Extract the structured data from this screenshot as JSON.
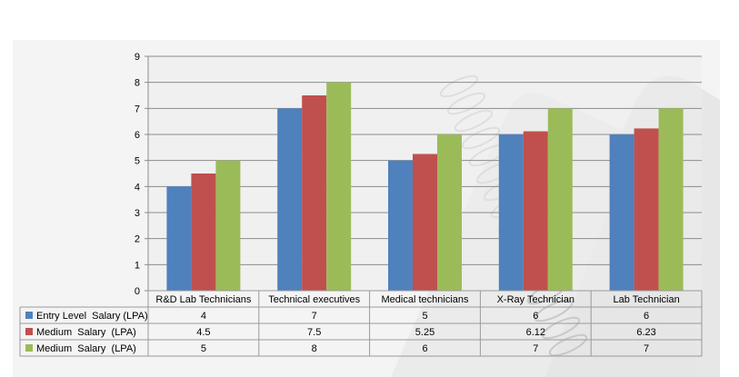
{
  "chart_data": {
    "type": "bar",
    "categories": [
      "R&D Lab Technicians",
      "Technical executives",
      "Medical technicians",
      "X-Ray Technician",
      "Lab Technician"
    ],
    "series": [
      {
        "name": "Entry Level  Salary (LPA)",
        "values": [
          4,
          7,
          5,
          6,
          6
        ],
        "labels": [
          "4",
          "7",
          "5",
          "6",
          "6"
        ],
        "color": "#4F81BD"
      },
      {
        "name": "Medium  Salary  (LPA)",
        "values": [
          4.5,
          7.5,
          5.25,
          6.12,
          6.23
        ],
        "labels": [
          "4.5",
          "7.5",
          "5.25",
          "6.12",
          "6.23"
        ],
        "color": "#C0504D"
      },
      {
        "name": "Medium  Salary  (LPA)",
        "values": [
          5,
          8,
          6,
          7,
          7
        ],
        "labels": [
          "5",
          "8",
          "6",
          "7",
          "7"
        ],
        "color": "#9BBB59"
      }
    ],
    "yticks": [
      "0",
      "1",
      "2",
      "3",
      "4",
      "5",
      "6",
      "7",
      "8",
      "9"
    ],
    "ylim": [
      0,
      9
    ],
    "grid": true,
    "legend": "data-table-left",
    "title": "",
    "xlabel": "",
    "ylabel": ""
  },
  "colors": {
    "plot_background": "#ECECEC",
    "gridline": "#8C8C8C",
    "table_border": "#9A9A9A"
  }
}
